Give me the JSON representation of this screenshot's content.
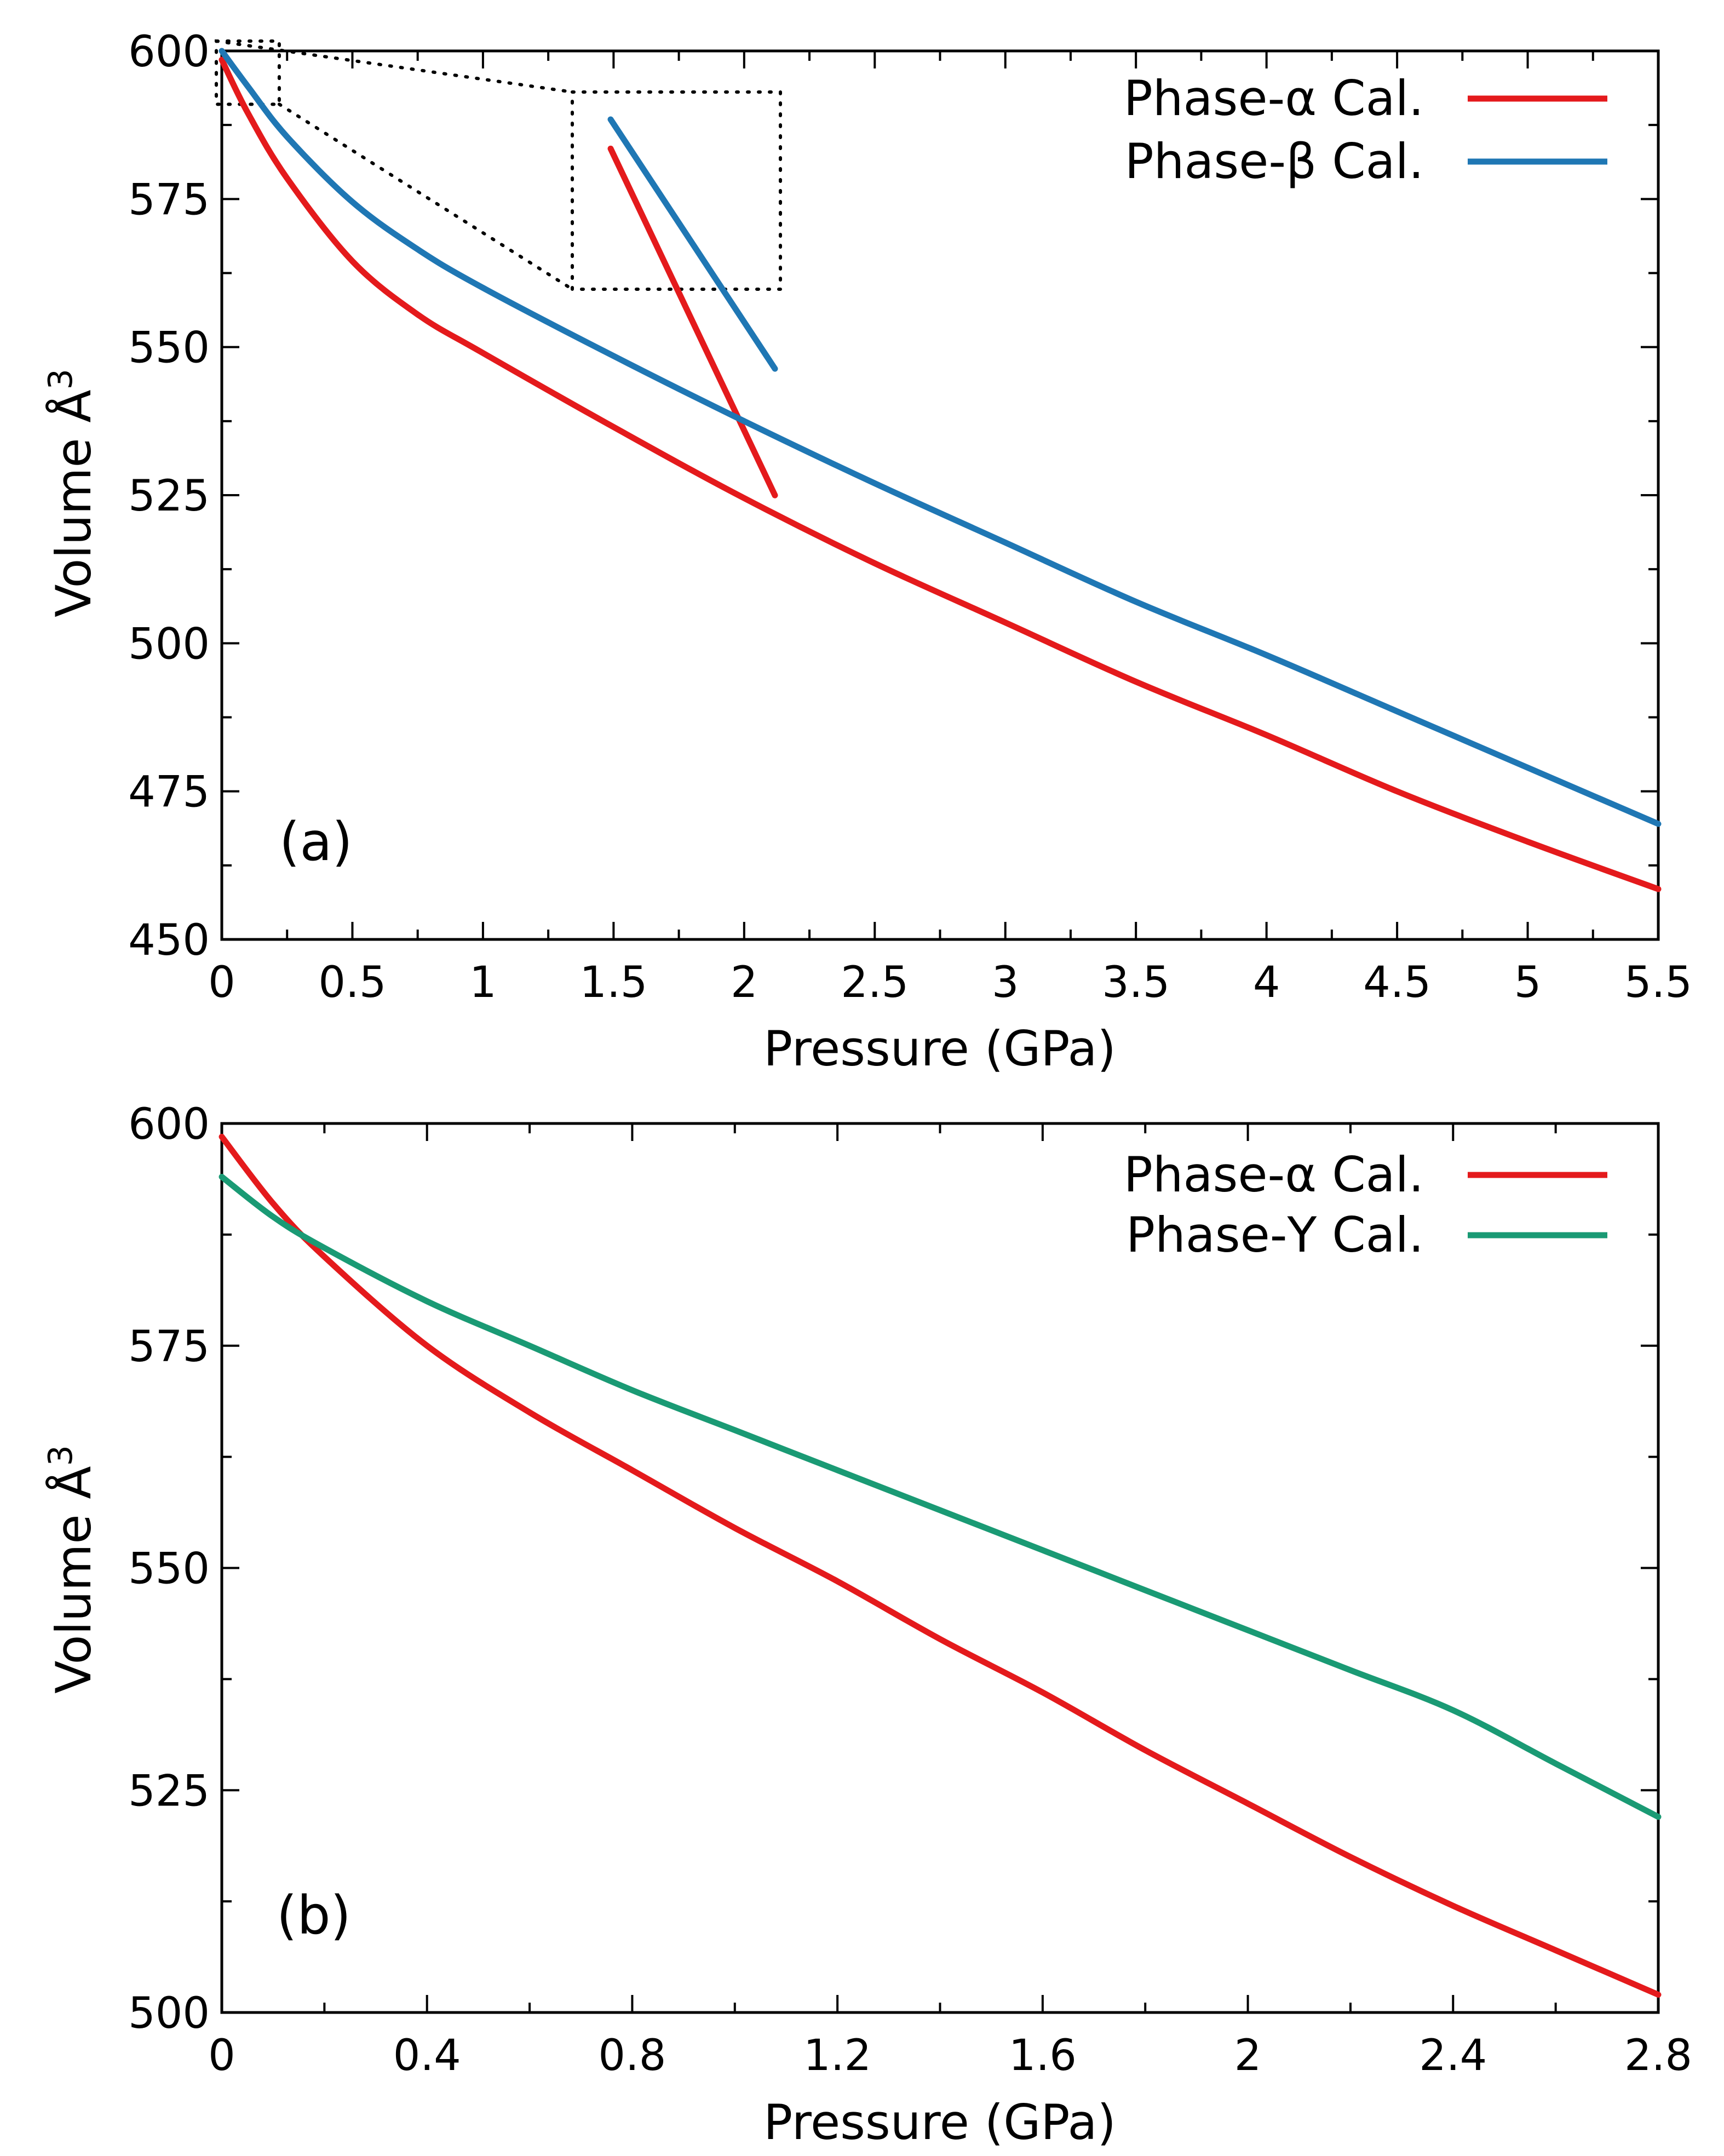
{
  "chart_data": [
    {
      "type": "line",
      "panel_label": "(a)",
      "xlabel": "Pressure (GPa)",
      "ylabel": "Volume Å",
      "ylabel_sup": "3",
      "xlim": [
        0,
        5.5
      ],
      "ylim": [
        450,
        600
      ],
      "xticks": [
        0,
        0.5,
        1,
        1.5,
        2,
        2.5,
        3,
        3.5,
        4,
        4.5,
        5,
        5.5
      ],
      "xtick_labels": [
        "0",
        "0.5",
        "1",
        "1.5",
        "2",
        "2.5",
        "3",
        "3.5",
        "4",
        "4.5",
        "5",
        "5.5"
      ],
      "yticks": [
        450,
        475,
        500,
        525,
        550,
        575,
        600
      ],
      "ytick_labels": [
        "450",
        "475",
        "500",
        "525",
        "550",
        "575",
        "600"
      ],
      "legend_position": "top-right",
      "inset": {
        "type": "zoom",
        "x_range": [
          0,
          0.22
        ],
        "y_range": [
          591,
          600
        ]
      },
      "series": [
        {
          "name": "Phase-α Cal.",
          "color": "#e41a1c",
          "x": [
            0,
            0.1,
            0.25,
            0.5,
            0.75,
            1,
            1.5,
            2,
            2.5,
            3,
            3.5,
            4,
            4.5,
            5,
            5.5
          ],
          "y": [
            598.5,
            589.5,
            578.5,
            564.5,
            555.5,
            549,
            536.5,
            524.5,
            513.5,
            503.5,
            493.5,
            484.5,
            475,
            466.5,
            458.5
          ]
        },
        {
          "name": "Phase-β Cal.",
          "color": "#1f77b4",
          "x": [
            0,
            0.1,
            0.25,
            0.5,
            0.75,
            1,
            1.5,
            2,
            2.5,
            3,
            3.5,
            4,
            4.5,
            5,
            5.5
          ],
          "y": [
            600,
            594,
            585.5,
            574.5,
            566.5,
            560,
            548.5,
            537.5,
            527,
            517,
            507,
            498,
            488.5,
            479,
            469.5
          ]
        }
      ]
    },
    {
      "type": "line",
      "panel_label": "(b)",
      "xlabel": "Pressure (GPa)",
      "ylabel": "Volume Å",
      "ylabel_sup": "3",
      "xlim": [
        0,
        2.8
      ],
      "ylim": [
        500,
        600
      ],
      "xticks": [
        0,
        0.4,
        0.8,
        1.2,
        1.6,
        2,
        2.4,
        2.8
      ],
      "xtick_labels": [
        "0",
        "0.4",
        "0.8",
        "1.2",
        "1.6",
        "2",
        "2.4",
        "2.8"
      ],
      "yticks": [
        500,
        525,
        550,
        575,
        600
      ],
      "ytick_labels": [
        "500",
        "525",
        "550",
        "575",
        "600"
      ],
      "legend_position": "top-right",
      "series": [
        {
          "name": "Phase-α Cal.",
          "color": "#e41a1c",
          "x": [
            0,
            0.1,
            0.2,
            0.4,
            0.6,
            0.8,
            1.0,
            1.2,
            1.4,
            1.6,
            1.8,
            2.0,
            2.2,
            2.4,
            2.6,
            2.8
          ],
          "y": [
            598.5,
            591,
            585,
            575,
            567.5,
            561,
            554.5,
            548.5,
            542,
            536,
            529.5,
            523.5,
            517.5,
            512,
            507,
            502
          ]
        },
        {
          "name": "Phase-Υ Cal.",
          "color": "#1a9a74",
          "x": [
            0,
            0.1,
            0.2,
            0.4,
            0.6,
            0.8,
            1.0,
            1.2,
            1.4,
            1.6,
            1.8,
            2.0,
            2.2,
            2.4,
            2.6,
            2.8
          ],
          "y": [
            594,
            589.5,
            586,
            580,
            575,
            570,
            565.5,
            561,
            556.5,
            552,
            547.5,
            543,
            538.5,
            534,
            528,
            522
          ]
        }
      ]
    }
  ]
}
